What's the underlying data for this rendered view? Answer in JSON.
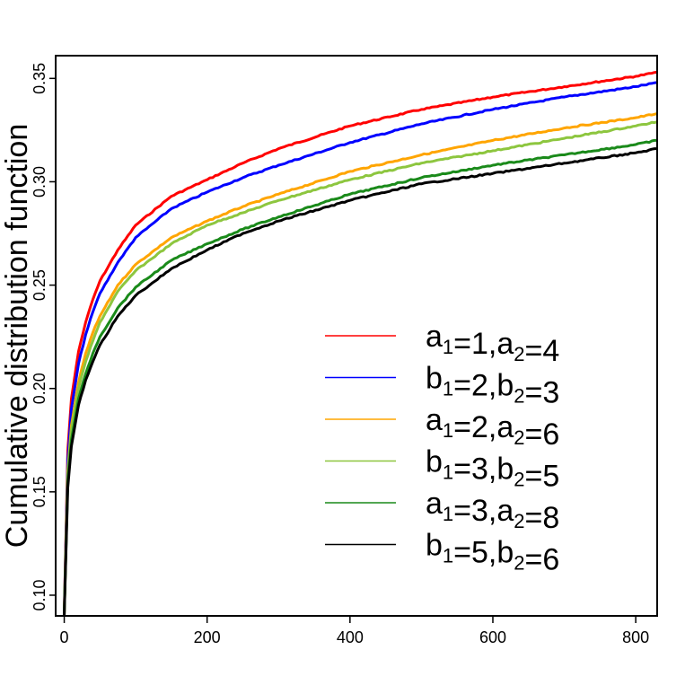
{
  "chart_data": {
    "type": "line",
    "title": "",
    "xlabel": "",
    "ylabel": "Cumulative distribution function",
    "xlim": [
      -12,
      830
    ],
    "ylim": [
      0.09,
      0.361
    ],
    "x_ticks": [
      0,
      200,
      400,
      600,
      800
    ],
    "y_ticks": [
      0.1,
      0.15,
      0.2,
      0.25,
      0.3,
      0.35
    ],
    "y_tick_labels": [
      "0.10",
      "0.15",
      "0.20",
      "0.25",
      "0.30",
      "0.35"
    ],
    "grid": false,
    "legend_position": "right",
    "series": [
      {
        "name": "a1=1,a2=4",
        "legend": [
          {
            "t": "a",
            "s": "1"
          },
          {
            "t": "=1,a"
          },
          {
            "t": "",
            "s": "2"
          },
          {
            "t": "=4"
          }
        ],
        "color": "#ff0000",
        "x": [
          0,
          5,
          10,
          20,
          30,
          40,
          50,
          75,
          100,
          150,
          200,
          250,
          300,
          400,
          500,
          600,
          700,
          800,
          830
        ],
        "y": [
          0.09,
          0.17,
          0.195,
          0.218,
          0.232,
          0.243,
          0.252,
          0.267,
          0.279,
          0.293,
          0.301,
          0.309,
          0.316,
          0.327,
          0.335,
          0.341,
          0.346,
          0.351,
          0.353
        ]
      },
      {
        "name": "b1=2,b2=3",
        "legend": [
          {
            "t": "b",
            "s": "1"
          },
          {
            "t": "=2,b"
          },
          {
            "t": "",
            "s": "2"
          },
          {
            "t": "=3"
          }
        ],
        "color": "#0000ff",
        "x": [
          0,
          5,
          10,
          20,
          30,
          40,
          50,
          75,
          100,
          150,
          200,
          250,
          300,
          400,
          500,
          600,
          700,
          800,
          830
        ],
        "y": [
          0.09,
          0.165,
          0.19,
          0.212,
          0.226,
          0.237,
          0.246,
          0.261,
          0.273,
          0.287,
          0.295,
          0.302,
          0.308,
          0.319,
          0.328,
          0.335,
          0.341,
          0.346,
          0.348
        ]
      },
      {
        "name": "a1=2,a2=6",
        "legend": [
          {
            "t": "a",
            "s": "1"
          },
          {
            "t": "=2,a"
          },
          {
            "t": "",
            "s": "2"
          },
          {
            "t": "=6"
          }
        ],
        "color": "#ffa500",
        "x": [
          0,
          5,
          10,
          20,
          30,
          40,
          50,
          75,
          100,
          150,
          200,
          250,
          300,
          400,
          500,
          600,
          700,
          800,
          830
        ],
        "y": [
          0.09,
          0.16,
          0.182,
          0.203,
          0.217,
          0.227,
          0.235,
          0.25,
          0.26,
          0.273,
          0.281,
          0.288,
          0.294,
          0.305,
          0.313,
          0.32,
          0.326,
          0.331,
          0.333
        ]
      },
      {
        "name": "b1=3,b2=5",
        "legend": [
          {
            "t": "b",
            "s": "1"
          },
          {
            "t": "=3,b"
          },
          {
            "t": "",
            "s": "2"
          },
          {
            "t": "=5"
          }
        ],
        "color": "#8dc63f",
        "x": [
          0,
          5,
          10,
          20,
          30,
          40,
          50,
          75,
          100,
          150,
          200,
          250,
          300,
          400,
          500,
          600,
          700,
          800,
          830
        ],
        "y": [
          0.09,
          0.158,
          0.18,
          0.2,
          0.213,
          0.223,
          0.232,
          0.247,
          0.257,
          0.27,
          0.279,
          0.285,
          0.291,
          0.301,
          0.309,
          0.315,
          0.321,
          0.327,
          0.329
        ]
      },
      {
        "name": "a1=3,a2=8",
        "legend": [
          {
            "t": "a",
            "s": "1"
          },
          {
            "t": "=3,a"
          },
          {
            "t": "",
            "s": "2"
          },
          {
            "t": "=8"
          }
        ],
        "color": "#1a8a1a",
        "x": [
          0,
          5,
          10,
          20,
          30,
          40,
          50,
          75,
          100,
          150,
          200,
          250,
          300,
          400,
          500,
          600,
          700,
          800,
          830
        ],
        "y": [
          0.09,
          0.155,
          0.175,
          0.195,
          0.207,
          0.217,
          0.225,
          0.239,
          0.249,
          0.262,
          0.27,
          0.277,
          0.283,
          0.294,
          0.302,
          0.308,
          0.313,
          0.318,
          0.32
        ]
      },
      {
        "name": "b1=5,b2=6",
        "legend": [
          {
            "t": "b",
            "s": "1"
          },
          {
            "t": "=5,b"
          },
          {
            "t": "",
            "s": "2"
          },
          {
            "t": "=6"
          }
        ],
        "color": "#000000",
        "x": [
          0,
          5,
          10,
          20,
          30,
          40,
          50,
          75,
          100,
          150,
          200,
          250,
          300,
          400,
          500,
          600,
          700,
          800,
          830
        ],
        "y": [
          0.09,
          0.152,
          0.172,
          0.192,
          0.204,
          0.213,
          0.221,
          0.235,
          0.245,
          0.258,
          0.267,
          0.275,
          0.281,
          0.291,
          0.299,
          0.304,
          0.309,
          0.314,
          0.316
        ]
      }
    ]
  }
}
